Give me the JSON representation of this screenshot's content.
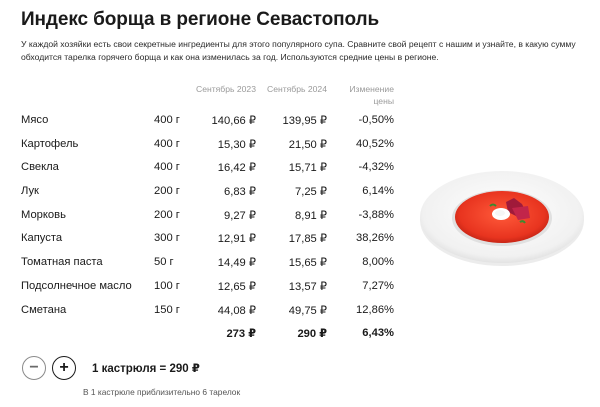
{
  "title": "Индекс борща в регионе Севастополь",
  "intro": "У каждой хозяйки есть свои секретные ингредиенты для этого популярного супа. Сравните свой рецепт с нашим и узнайте, в какую сумму обходится тарелка горячего борща и как она изменилась за год. Используются средние цены в регионе.",
  "table": {
    "headers": {
      "sep2023": "Сентябрь 2023",
      "sep2024": "Сентябрь 2024",
      "change": "Изменение цены"
    },
    "rows": [
      {
        "name": "Мясо",
        "qty": "400 г",
        "p2023": "140,66 ₽",
        "p2024": "139,95 ₽",
        "change": "-0,50%"
      },
      {
        "name": "Картофель",
        "qty": "400 г",
        "p2023": "15,30 ₽",
        "p2024": "21,50 ₽",
        "change": "40,52%"
      },
      {
        "name": "Свекла",
        "qty": "400 г",
        "p2023": "16,42 ₽",
        "p2024": "15,71 ₽",
        "change": "-4,32%"
      },
      {
        "name": "Лук",
        "qty": "200 г",
        "p2023": "6,83 ₽",
        "p2024": "7,25 ₽",
        "change": "6,14%"
      },
      {
        "name": "Морковь",
        "qty": "200 г",
        "p2023": "9,27 ₽",
        "p2024": "8,91 ₽",
        "change": "-3,88%"
      },
      {
        "name": "Капуста",
        "qty": "300 г",
        "p2023": "12,91 ₽",
        "p2024": "17,85 ₽",
        "change": "38,26%"
      },
      {
        "name": "Томатная паста",
        "qty": "50 г",
        "p2023": "14,49 ₽",
        "p2024": "15,65 ₽",
        "change": "8,00%"
      },
      {
        "name": "Подсолнечное масло",
        "qty": "100 г",
        "p2023": "12,65 ₽",
        "p2024": "13,57 ₽",
        "change": "7,27%"
      },
      {
        "name": "Сметана",
        "qty": "150 г",
        "p2023": "44,08 ₽",
        "p2024": "49,75 ₽",
        "change": "12,86%"
      }
    ],
    "total": {
      "p2023": "273 ₽",
      "p2024": "290 ₽",
      "change": "6,43%"
    }
  },
  "controls": {
    "minus_label": "−",
    "plus_label": "+",
    "pot_label": "1 кастрюля = 290 ₽",
    "note": "В 1 кастрюле приблизительно 6 тарелок"
  },
  "icons": {
    "minus": "minus-icon",
    "plus": "plus-icon",
    "plate": "borscht-plate-illustration"
  },
  "colors": {
    "text": "#1a1a1a",
    "muted": "#9a9a9a",
    "soup": "#e8341f"
  }
}
